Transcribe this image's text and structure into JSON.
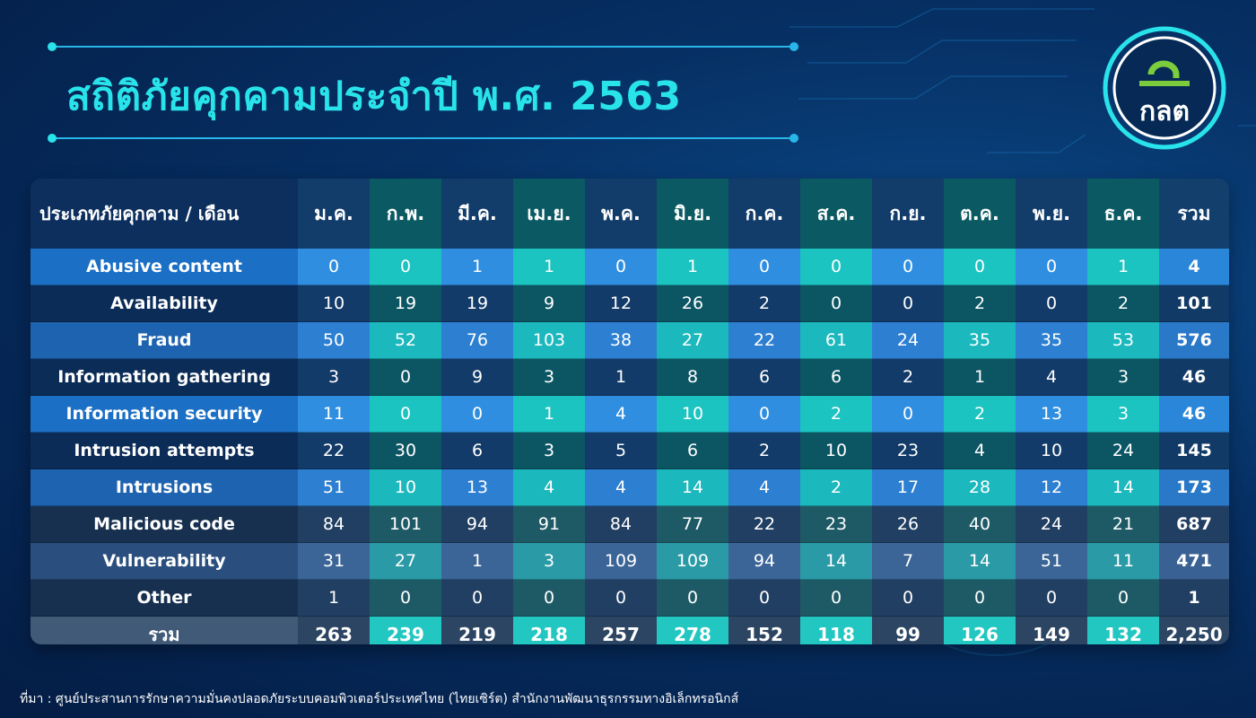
{
  "title": "สถิติภัยคุกคามประจำปี พ.ศ. 2563",
  "logo": {
    "text": "กลต",
    "icon": "sec-thailand-logo"
  },
  "colors": {
    "title": "#29e3ea",
    "accent": "#22c7c1",
    "background": "#062f63"
  },
  "table": {
    "header_first": "ประเภทภัยคุกคาม / เดือน",
    "months": [
      "ม.ค.",
      "ก.พ.",
      "มี.ค.",
      "เม.ย.",
      "พ.ค.",
      "มิ.ย.",
      "ก.ค.",
      "ส.ค.",
      "ก.ย.",
      "ต.ค.",
      "พ.ย.",
      "ธ.ค."
    ],
    "header_total": "รวม",
    "rows": [
      {
        "name": "Abusive content",
        "values": [
          "0",
          "0",
          "1",
          "1",
          "0",
          "1",
          "0",
          "0",
          "0",
          "0",
          "0",
          "1"
        ],
        "total": "4"
      },
      {
        "name": "Availability",
        "values": [
          "10",
          "19",
          "19",
          "9",
          "12",
          "26",
          "2",
          "0",
          "0",
          "2",
          "0",
          "2"
        ],
        "total": "101"
      },
      {
        "name": "Fraud",
        "values": [
          "50",
          "52",
          "76",
          "103",
          "38",
          "27",
          "22",
          "61",
          "24",
          "35",
          "35",
          "53"
        ],
        "total": "576"
      },
      {
        "name": "Information gathering",
        "values": [
          "3",
          "0",
          "9",
          "3",
          "1",
          "8",
          "6",
          "6",
          "2",
          "1",
          "4",
          "3"
        ],
        "total": "46"
      },
      {
        "name": "Information security",
        "values": [
          "11",
          "0",
          "0",
          "1",
          "4",
          "10",
          "0",
          "2",
          "0",
          "2",
          "13",
          "3"
        ],
        "total": "46"
      },
      {
        "name": "Intrusion attempts",
        "values": [
          "22",
          "30",
          "6",
          "3",
          "5",
          "6",
          "2",
          "10",
          "23",
          "4",
          "10",
          "24"
        ],
        "total": "145"
      },
      {
        "name": "Intrusions",
        "values": [
          "51",
          "10",
          "13",
          "4",
          "4",
          "14",
          "4",
          "2",
          "17",
          "28",
          "12",
          "14"
        ],
        "total": "173"
      },
      {
        "name": "Malicious code",
        "values": [
          "84",
          "101",
          "94",
          "91",
          "84",
          "77",
          "22",
          "23",
          "26",
          "40",
          "24",
          "21"
        ],
        "total": "687"
      },
      {
        "name": "Vulnerability",
        "values": [
          "31",
          "27",
          "1",
          "3",
          "109",
          "109",
          "94",
          "14",
          "7",
          "14",
          "51",
          "11"
        ],
        "total": "471"
      },
      {
        "name": "Other",
        "values": [
          "1",
          "0",
          "0",
          "0",
          "0",
          "0",
          "0",
          "0",
          "0",
          "0",
          "0",
          "0"
        ],
        "total": "1"
      }
    ],
    "sum_row": {
      "name": "รวม",
      "values": [
        "263",
        "239",
        "219",
        "218",
        "257",
        "278",
        "152",
        "118",
        "99",
        "126",
        "149",
        "132"
      ],
      "total": "2,250"
    }
  },
  "footer": "ที่มา : ศูนย์ประสานการรักษาความมั่นคงปลอดภัยระบบคอมพิวเตอร์ประเทศไทย (ไทยเซิร์ต) สำนักงานพัฒนาธุรกรรมทางอิเล็กทรอนิกส์"
}
